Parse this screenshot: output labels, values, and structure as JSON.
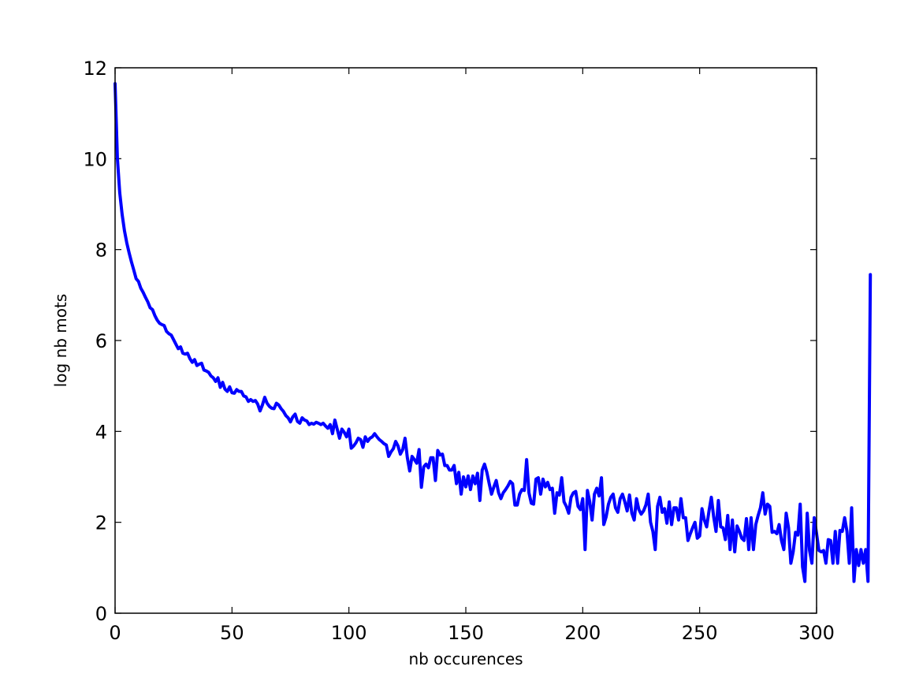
{
  "chart_data": {
    "type": "line",
    "title": "",
    "xlabel": "nb occurences",
    "ylabel": "log nb mots",
    "xlim": [
      0,
      300
    ],
    "ylim": [
      0,
      12
    ],
    "x_ticks": [
      0,
      50,
      100,
      150,
      200,
      250,
      300
    ],
    "y_ticks": [
      0,
      2,
      4,
      6,
      8,
      10,
      12
    ],
    "grid": false,
    "legend": "none",
    "line_color": "#0000ff",
    "series": [
      {
        "x_start": 0,
        "x_step": 1,
        "values": [
          11.65,
          10.0,
          9.25,
          8.78,
          8.42,
          8.15,
          7.93,
          7.73,
          7.55,
          7.36,
          7.3,
          7.15,
          7.06,
          6.95,
          6.85,
          6.72,
          6.68,
          6.55,
          6.45,
          6.38,
          6.35,
          6.33,
          6.2,
          6.15,
          6.12,
          6.02,
          5.92,
          5.82,
          5.86,
          5.72,
          5.7,
          5.72,
          5.6,
          5.52,
          5.58,
          5.45,
          5.48,
          5.5,
          5.35,
          5.33,
          5.3,
          5.22,
          5.18,
          5.1,
          5.18,
          4.97,
          5.08,
          4.93,
          4.88,
          4.98,
          4.85,
          4.84,
          4.92,
          4.88,
          4.88,
          4.78,
          4.76,
          4.66,
          4.7,
          4.66,
          4.68,
          4.6,
          4.45,
          4.58,
          4.75,
          4.62,
          4.55,
          4.51,
          4.5,
          4.62,
          4.58,
          4.5,
          4.44,
          4.35,
          4.3,
          4.21,
          4.32,
          4.38,
          4.22,
          4.18,
          4.3,
          4.25,
          4.23,
          4.15,
          4.18,
          4.16,
          4.2,
          4.18,
          4.15,
          4.18,
          4.12,
          4.07,
          4.15,
          3.95,
          4.25,
          4.05,
          3.85,
          4.05,
          3.98,
          3.88,
          4.05,
          3.63,
          3.68,
          3.75,
          3.85,
          3.82,
          3.65,
          3.88,
          3.78,
          3.85,
          3.88,
          3.95,
          3.88,
          3.82,
          3.78,
          3.73,
          3.7,
          3.45,
          3.55,
          3.62,
          3.78,
          3.68,
          3.5,
          3.6,
          3.85,
          3.42,
          3.13,
          3.45,
          3.38,
          3.3,
          3.6,
          2.77,
          3.22,
          3.28,
          3.2,
          3.42,
          3.42,
          2.92,
          3.58,
          3.48,
          3.5,
          3.25,
          3.25,
          3.15,
          3.15,
          3.25,
          2.85,
          3.1,
          2.62,
          3.0,
          2.78,
          3.02,
          2.72,
          3.02,
          2.85,
          3.08,
          2.48,
          3.15,
          3.28,
          3.1,
          2.85,
          2.62,
          2.78,
          2.92,
          2.65,
          2.52,
          2.65,
          2.72,
          2.8,
          2.9,
          2.85,
          2.38,
          2.38,
          2.62,
          2.72,
          2.7,
          3.38,
          2.65,
          2.42,
          2.4,
          2.95,
          2.98,
          2.62,
          2.95,
          2.78,
          2.88,
          2.72,
          2.75,
          2.2,
          2.65,
          2.6,
          2.98,
          2.45,
          2.35,
          2.2,
          2.55,
          2.65,
          2.68,
          2.35,
          2.28,
          2.52,
          1.4,
          2.7,
          2.45,
          2.05,
          2.62,
          2.75,
          2.58,
          2.98,
          1.95,
          2.12,
          2.4,
          2.55,
          2.62,
          2.32,
          2.22,
          2.52,
          2.62,
          2.45,
          2.25,
          2.6,
          2.2,
          2.05,
          2.52,
          2.28,
          2.18,
          2.25,
          2.38,
          2.62,
          2.0,
          1.8,
          1.4,
          2.35,
          2.55,
          2.22,
          2.3,
          1.98,
          2.45,
          1.95,
          2.32,
          2.32,
          2.05,
          2.52,
          2.1,
          2.1,
          1.6,
          1.75,
          1.88,
          2.0,
          1.65,
          1.7,
          2.3,
          2.05,
          1.9,
          2.25,
          2.55,
          2.12,
          1.8,
          2.48,
          1.9,
          1.88,
          1.62,
          2.15,
          1.4,
          2.05,
          1.35,
          1.92,
          1.8,
          1.65,
          1.6,
          2.08,
          1.4,
          2.1,
          1.4,
          1.95,
          2.15,
          2.32,
          2.65,
          2.18,
          2.4,
          2.35,
          1.78,
          1.8,
          1.75,
          1.95,
          1.6,
          1.4,
          2.2,
          1.88,
          1.1,
          1.35,
          1.78,
          1.72,
          2.4,
          1.02,
          0.7,
          2.2,
          1.38,
          1.1,
          2.1,
          1.75,
          1.38,
          1.35,
          1.38,
          1.1,
          1.62,
          1.6,
          1.1,
          1.8,
          1.1,
          1.82,
          1.8,
          2.1,
          1.8,
          1.1,
          2.32,
          0.7,
          1.4,
          1.05,
          1.4,
          1.1,
          1.4,
          0.7,
          7.45
        ]
      }
    ]
  }
}
